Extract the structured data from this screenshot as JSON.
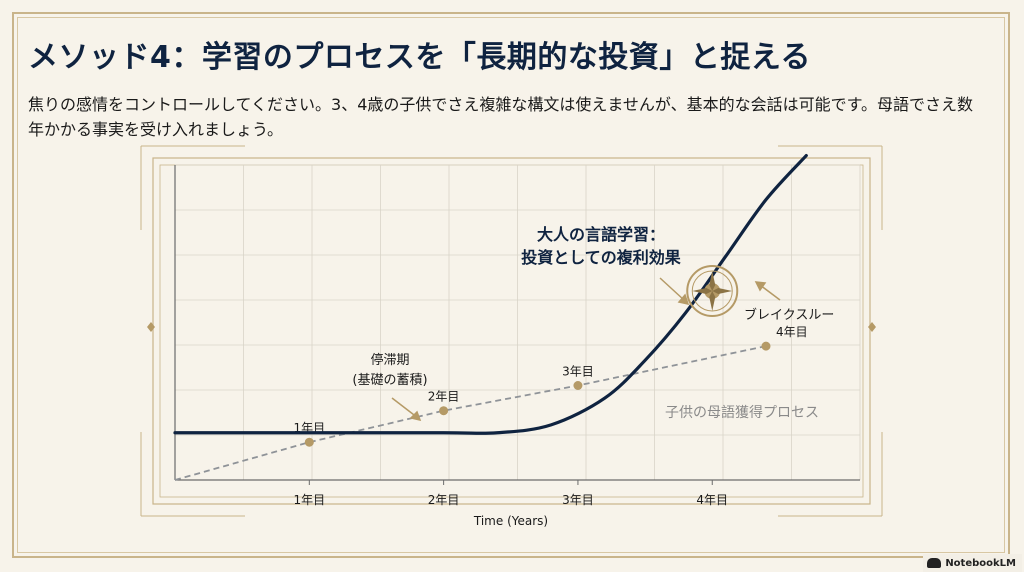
{
  "title": "メソッド4：学習のプロセスを「長期的な投資」と捉える",
  "description": "焦りの感情をコントロールしてください。3、4歳の子供でさえ複雑な構文は使えませんが、基本的な会話は可能です。母語でさえ数年かかる事実を受け入れましょう。",
  "annotations": {
    "stagnation_line1": "停滞期",
    "stagnation_line2": "(基礎の蓄積)",
    "adult_line1": "大人の言語学習：",
    "adult_line2": "投資としての複利効果",
    "breakthrough": "ブレイクスルー",
    "child_process": "子供の母語獲得プロセス"
  },
  "branding": {
    "name": "NotebookLM"
  },
  "colors": {
    "navy": "#0f2340",
    "gold": "#b59a66",
    "dash": "#8f9398",
    "background": "#f7f3ea"
  },
  "chart_data": {
    "type": "line",
    "xlabel": "Time (Years)",
    "ylabel": "",
    "x_ticks": [
      "1年目",
      "2年目",
      "3年目",
      "4年目"
    ],
    "xlim": [
      0,
      5.1
    ],
    "ylim": [
      0,
      10
    ],
    "series": [
      {
        "name": "大人の言語学習：投資としての複利効果",
        "style": "solid",
        "points": [
          [
            0,
            1.5
          ],
          [
            1,
            1.5
          ],
          [
            2,
            1.5
          ],
          [
            2.4,
            1.5
          ],
          [
            2.8,
            1.75
          ],
          [
            3.2,
            2.6
          ],
          [
            3.5,
            3.8
          ],
          [
            3.8,
            5.3
          ],
          [
            4.1,
            7.1
          ],
          [
            4.4,
            8.9
          ],
          [
            4.7,
            10.3
          ]
        ]
      },
      {
        "name": "子供の母語獲得プロセス",
        "style": "dashed",
        "points": [
          [
            0,
            0
          ],
          [
            1,
            1.2
          ],
          [
            2,
            2.2
          ],
          [
            3,
            3.0
          ],
          [
            4.4,
            4.25
          ]
        ],
        "marker_labels": [
          "1年目",
          "2年目",
          "3年目",
          "4年目"
        ]
      }
    ],
    "highlight": {
      "label": "ブレイクスルー",
      "x": 4.0,
      "y": 6.0
    }
  }
}
